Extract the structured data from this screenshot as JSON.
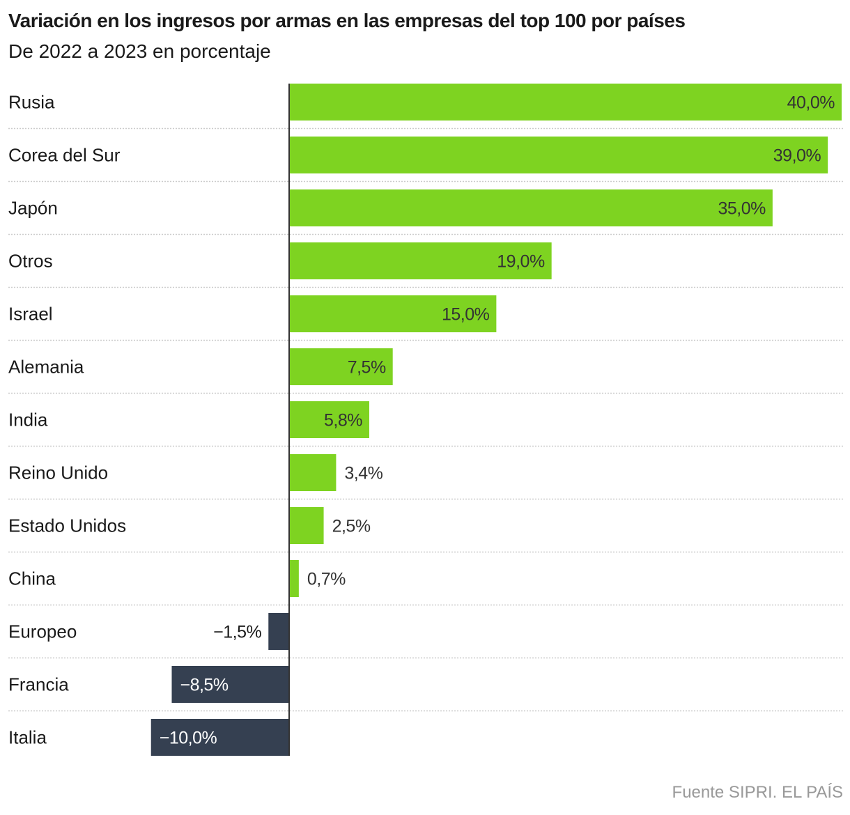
{
  "chart_data": {
    "type": "bar",
    "orientation": "horizontal",
    "title": "Variación en los ingresos por armas en las empresas del top 100 por países",
    "subtitle": "De 2022 a 2023 en porcentaje",
    "source": "Fuente SIPRI. EL PAÍS",
    "xlabel": "",
    "ylabel": "",
    "xlim": [
      -10,
      40
    ],
    "grid": "dotted row separators",
    "categories": [
      "Rusia",
      "Corea del Sur",
      "Japón",
      "Otros",
      "Israel",
      "Alemania",
      "India",
      "Reino Unido",
      "Estado Unidos",
      "China",
      "Europeo",
      "Francia",
      "Italia"
    ],
    "values": [
      40.0,
      39.0,
      35.0,
      19.0,
      15.0,
      7.5,
      5.8,
      3.4,
      2.5,
      0.7,
      -1.5,
      -8.5,
      -10.0
    ],
    "labels": [
      "40,0%",
      "39,0%",
      "35,0%",
      "19,0%",
      "15,0%",
      "7,5%",
      "5,8%",
      "3,4%",
      "2,5%",
      "0,7%",
      "−1,5%",
      "−8,5%",
      "−10,0%"
    ],
    "colors": {
      "positive": "#7ed321",
      "negative": "#354051",
      "zero_line": "#333333",
      "grid": "#cccccc",
      "label_dark": "#333333",
      "label_light": "#ffffff"
    }
  }
}
